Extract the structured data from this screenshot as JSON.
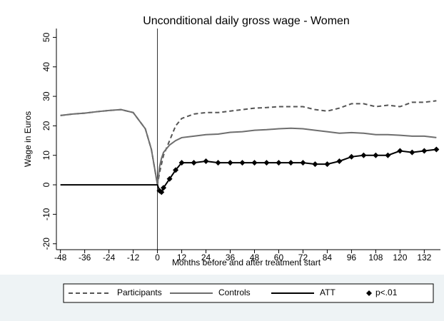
{
  "chart_data": {
    "type": "line",
    "title": "Unconditional daily gross wage - Women",
    "y_label": "Wage in Euros",
    "x_label": "Months before and after treatment start",
    "x": [
      -48,
      -42,
      -36,
      -30,
      -24,
      -18,
      -12,
      -6,
      -3,
      0,
      1,
      2,
      3,
      6,
      9,
      12,
      18,
      24,
      30,
      36,
      42,
      48,
      54,
      60,
      66,
      72,
      78,
      84,
      90,
      96,
      102,
      108,
      114,
      120,
      126,
      132,
      138
    ],
    "series": [
      {
        "name": "Participants",
        "color": "#555555",
        "line_style": "dashed",
        "values": [
          23.5,
          24,
          24.3,
          24.8,
          25.2,
          25.5,
          24.5,
          19,
          12,
          0,
          4,
          7,
          10,
          15,
          20,
          22.5,
          24,
          24.5,
          24.5,
          25,
          25.5,
          26,
          26.2,
          26.5,
          26.5,
          26.5,
          25.5,
          25,
          26,
          27.5,
          27.5,
          26.5,
          27,
          26.5,
          28,
          28,
          28.5
        ]
      },
      {
        "name": "Controls",
        "color": "#6e6e6e",
        "line_style": "solid",
        "values": [
          23.5,
          24,
          24.3,
          24.8,
          25.2,
          25.5,
          24.5,
          19,
          12,
          0,
          6,
          9,
          11,
          13.5,
          15,
          16,
          16.5,
          17,
          17.2,
          17.8,
          18,
          18.5,
          18.7,
          19,
          19.2,
          19,
          18.5,
          18,
          17.5,
          17.7,
          17.5,
          17,
          17,
          16.8,
          16.5,
          16.5,
          16
        ]
      },
      {
        "name": "ATT",
        "color": "#000000",
        "line_style": "solid",
        "values": [
          0,
          0,
          0,
          0,
          0,
          0,
          0,
          0,
          0,
          0,
          -2,
          -2.5,
          -1,
          2,
          5,
          7.5,
          7.5,
          8,
          7.5,
          7.5,
          7.5,
          7.5,
          7.5,
          7.5,
          7.5,
          7.5,
          7,
          7,
          8,
          9.5,
          10,
          10,
          10,
          11.5,
          11,
          11.5,
          12
        ]
      },
      {
        "name": "p<.01",
        "color": "#000000",
        "line_style": "none",
        "marker": "diamond",
        "values": [
          null,
          null,
          null,
          null,
          null,
          null,
          null,
          null,
          null,
          null,
          -2,
          -2.5,
          -1,
          2,
          5,
          7.5,
          7.5,
          8,
          7.5,
          7.5,
          7.5,
          7.5,
          7.5,
          7.5,
          7.5,
          7.5,
          7,
          7,
          8,
          9.5,
          10,
          10,
          10,
          11.5,
          11,
          11.5,
          12
        ]
      }
    ],
    "xlim": [
      -50,
      140
    ],
    "xticks": [
      -48,
      -36,
      -24,
      -12,
      0,
      12,
      24,
      36,
      48,
      60,
      72,
      84,
      96,
      108,
      120,
      132
    ],
    "ylim": [
      -22,
      53
    ],
    "yticks": [
      -20,
      -10,
      0,
      10,
      20,
      30,
      40,
      50
    ],
    "xline": 0,
    "legend": "bottom"
  }
}
